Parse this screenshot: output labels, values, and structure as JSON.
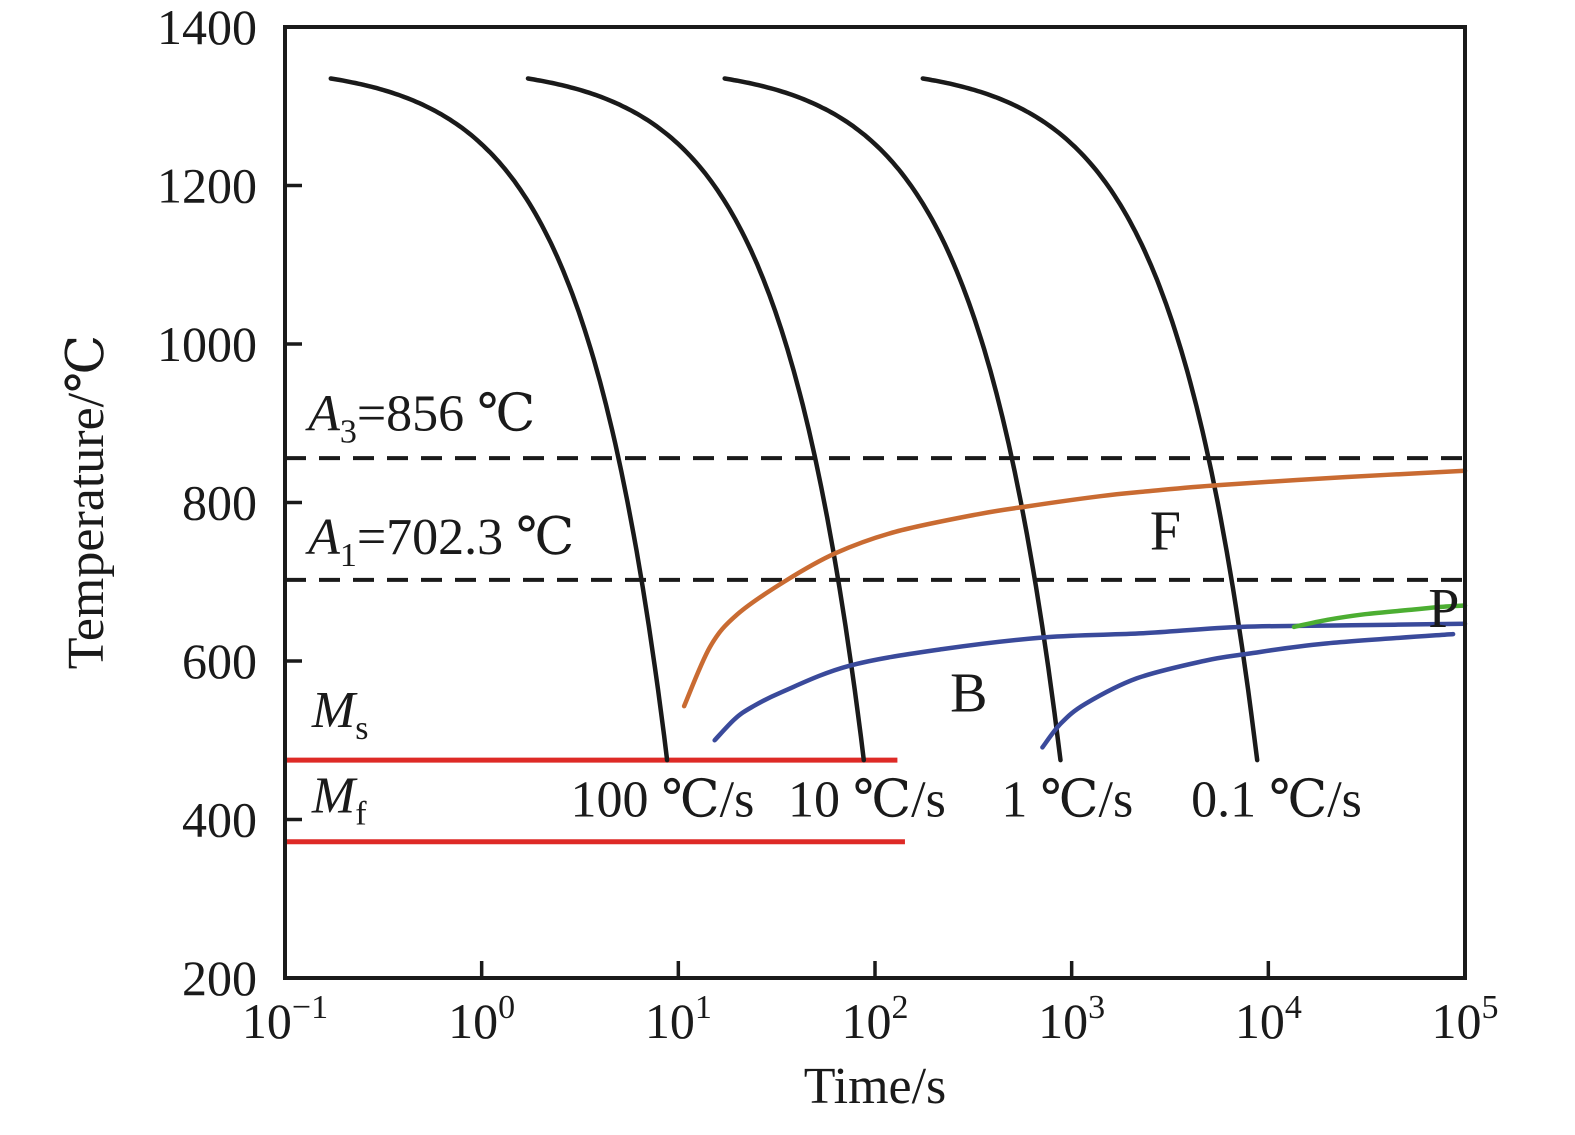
{
  "chart_data": {
    "type": "line",
    "title": "",
    "xlabel": "Time/s",
    "ylabel": "Temperature/℃",
    "x_scale": "log",
    "xlim": [
      0.1,
      100000
    ],
    "ylim": [
      200,
      1400
    ],
    "grid": false,
    "legend_position": "none-inline-labels",
    "axis_color": "#1a1a1a",
    "x_ticks": [
      {
        "base": "10",
        "exp": "−1",
        "value": 0.1
      },
      {
        "base": "10",
        "exp": "0",
        "value": 1
      },
      {
        "base": "10",
        "exp": "1",
        "value": 10
      },
      {
        "base": "10",
        "exp": "2",
        "value": 100
      },
      {
        "base": "10",
        "exp": "3",
        "value": 1000
      },
      {
        "base": "10",
        "exp": "4",
        "value": 10000
      },
      {
        "base": "10",
        "exp": "5",
        "value": 100000
      }
    ],
    "y_ticks": [
      200,
      400,
      600,
      800,
      1000,
      1200,
      1400
    ],
    "reference_lines": [
      {
        "id": "a3-line",
        "kind": "dashed",
        "temperature": 856,
        "t_range": [
          0.1,
          100000
        ],
        "color": "#1a1a1a"
      },
      {
        "id": "a1-line",
        "kind": "dashed",
        "temperature": 702.3,
        "t_range": [
          0.1,
          100000
        ],
        "color": "#1a1a1a"
      },
      {
        "id": "ms-line",
        "kind": "solid",
        "temperature": 475,
        "t_range": [
          0.1,
          130
        ],
        "color": "#de2a26"
      },
      {
        "id": "mf-line",
        "kind": "solid",
        "temperature": 372,
        "t_range": [
          0.1,
          142
        ],
        "color": "#de2a26"
      }
    ],
    "cooling_curves": [
      {
        "id": "cooling-curve-100",
        "rate_label": "100 ℃/s",
        "rate_c_per_s": 100,
        "t_start_s": 0.171,
        "T_start": 1335,
        "T_end": 475,
        "color": "#1a1a1a"
      },
      {
        "id": "cooling-curve-10",
        "rate_label": "10 ℃/s",
        "rate_c_per_s": 10,
        "t_start_s": 1.72,
        "T_start": 1335,
        "T_end": 475,
        "color": "#1a1a1a"
      },
      {
        "id": "cooling-curve-1",
        "rate_label": "1 ℃/s",
        "rate_c_per_s": 1,
        "t_start_s": 17.2,
        "T_start": 1335,
        "T_end": 475,
        "color": "#1a1a1a"
      },
      {
        "id": "cooling-curve-0-1",
        "rate_label": "0.1 ℃/s",
        "rate_c_per_s": 0.1,
        "t_start_s": 175,
        "T_start": 1335,
        "T_end": 475,
        "color": "#1a1a1a"
      }
    ],
    "transformation_curves": [
      {
        "id": "ferrite-start-curve",
        "phase": "F",
        "color": "#c96b32",
        "points": [
          [
            10.7,
            543
          ],
          [
            14.5,
            618
          ],
          [
            20,
            659
          ],
          [
            35,
            701
          ],
          [
            63,
            736
          ],
          [
            127,
            763
          ],
          [
            330,
            785
          ],
          [
            590,
            795
          ],
          [
            1400,
            808
          ],
          [
            2400,
            814
          ],
          [
            5600,
            822
          ],
          [
            24500,
            832
          ],
          [
            100000,
            840
          ]
        ]
      },
      {
        "id": "bainite-start-curve",
        "phase": "B",
        "color": "#3a4a9b",
        "points": [
          [
            15.3,
            500
          ],
          [
            19.4,
            527
          ],
          [
            23.7,
            542
          ],
          [
            33.7,
            561
          ],
          [
            74,
            594
          ],
          [
            220,
            615
          ],
          [
            740,
            630
          ],
          [
            2300,
            635
          ],
          [
            7300,
            643
          ],
          [
            26500,
            645
          ],
          [
            100000,
            647
          ]
        ]
      },
      {
        "id": "bainite-finish-curve",
        "phase": "B",
        "color": "#3a4a9b",
        "points": [
          [
            710,
            491
          ],
          [
            880,
            521
          ],
          [
            1175,
            546
          ],
          [
            2140,
            578
          ],
          [
            4700,
            600
          ],
          [
            7800,
            609
          ],
          [
            19300,
            622
          ],
          [
            87000,
            634
          ]
        ]
      },
      {
        "id": "pearlite-start-curve",
        "phase": "P",
        "color": "#4cae32",
        "points": [
          [
            13500,
            643
          ],
          [
            20000,
            652
          ],
          [
            31000,
            659
          ],
          [
            55000,
            665
          ],
          [
            73000,
            668
          ],
          [
            100000,
            670
          ]
        ]
      }
    ],
    "annotations": [
      {
        "id": "a3-label",
        "parts": [
          {
            "t": "A",
            "italic": true
          },
          {
            "t": "3",
            "sub": true
          },
          {
            "t": "=856 ℃"
          }
        ],
        "t": 0.131,
        "T": 891,
        "anchor": "start",
        "size": 52
      },
      {
        "id": "a1-label",
        "parts": [
          {
            "t": "A",
            "italic": true
          },
          {
            "t": "1",
            "sub": true
          },
          {
            "t": "=702.3 ℃"
          }
        ],
        "t": 0.131,
        "T": 735,
        "anchor": "start",
        "size": 52
      },
      {
        "id": "ms-label",
        "parts": [
          {
            "t": "M",
            "italic": true
          },
          {
            "t": "s",
            "sub": true
          }
        ],
        "t": 0.137,
        "T": 517,
        "anchor": "start",
        "size": 52
      },
      {
        "id": "mf-label",
        "parts": [
          {
            "t": "M",
            "italic": true
          },
          {
            "t": "f",
            "sub": true
          }
        ],
        "t": 0.137,
        "T": 409,
        "anchor": "start",
        "size": 52
      },
      {
        "id": "rate-label-100",
        "parts": [
          {
            "t": "100 ℃/s"
          }
        ],
        "t": 8.3,
        "T": 404,
        "anchor": "middle",
        "size": 52
      },
      {
        "id": "rate-label-10",
        "parts": [
          {
            "t": "10 ℃/s"
          }
        ],
        "t": 91,
        "T": 404,
        "anchor": "middle",
        "size": 52
      },
      {
        "id": "rate-label-1",
        "parts": [
          {
            "t": "1 ℃/s"
          }
        ],
        "t": 950,
        "T": 404,
        "anchor": "middle",
        "size": 52
      },
      {
        "id": "rate-label-0-1",
        "parts": [
          {
            "t": "0.1 ℃/s"
          }
        ],
        "t": 11000,
        "T": 404,
        "anchor": "middle",
        "size": 52
      },
      {
        "id": "ferrite-label",
        "parts": [
          {
            "t": "F"
          }
        ],
        "t": 3000,
        "T": 741,
        "anchor": "middle",
        "size": 56
      },
      {
        "id": "bainite-label",
        "parts": [
          {
            "t": "B"
          }
        ],
        "t": 300,
        "T": 536,
        "anchor": "middle",
        "size": 56
      },
      {
        "id": "pearlite-label",
        "parts": [
          {
            "t": "P"
          }
        ],
        "t": 78000,
        "T": 643,
        "anchor": "middle",
        "size": 56
      }
    ]
  }
}
